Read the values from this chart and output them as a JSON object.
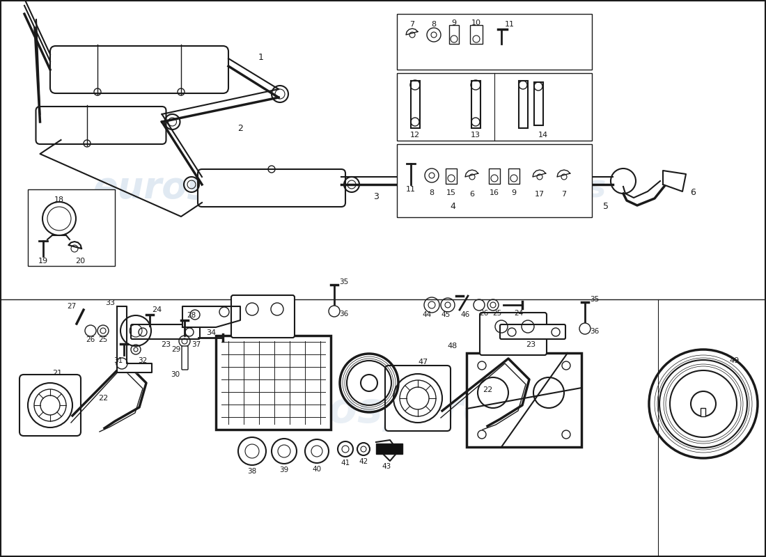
{
  "background_color": "#ffffff",
  "line_color": "#1a1a1a",
  "watermark_color": "#c8d8e8",
  "fig_width": 11.0,
  "fig_height": 8.0,
  "dpi": 100
}
